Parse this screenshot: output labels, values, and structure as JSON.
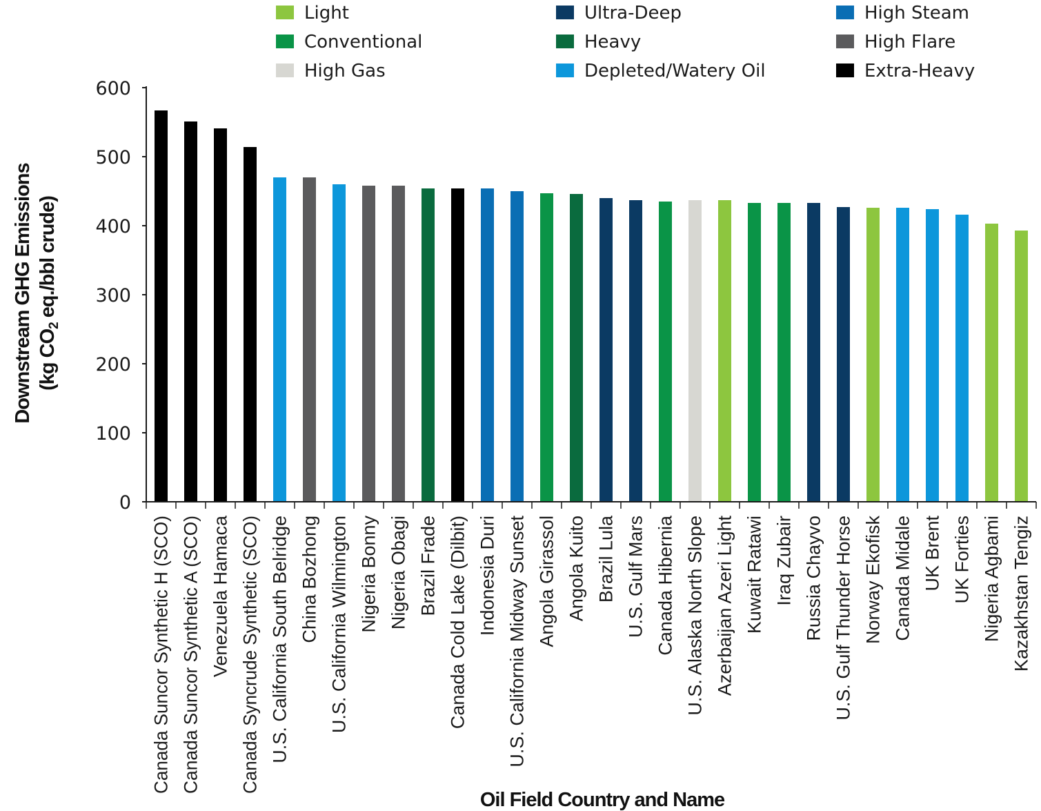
{
  "chart_data": {
    "type": "bar",
    "title": "",
    "xlabel": "Oil Field Country and Name",
    "ylabel": {
      "line1": "Downstream GHG Emissions",
      "line2_prefix": "(kg CO",
      "line2_sub": "2",
      "line2_suffix": " eq./bbl crude)"
    },
    "ylim": [
      0,
      600
    ],
    "yticks": [
      0,
      100,
      200,
      300,
      400,
      500,
      600
    ],
    "grid": false,
    "legend_position": "top",
    "legend": [
      {
        "name": "Light",
        "color": "#8dc63f"
      },
      {
        "name": "Ultra-Deep",
        "color": "#0b3a63"
      },
      {
        "name": "High Steam",
        "color": "#0a6eb4"
      },
      {
        "name": "Conventional",
        "color": "#0a9447"
      },
      {
        "name": "Heavy",
        "color": "#0a6b3e"
      },
      {
        "name": "High Flare",
        "color": "#5b5b5d"
      },
      {
        "name": "High Gas",
        "color": "#d7d7d2"
      },
      {
        "name": "Depleted/Watery Oil",
        "color": "#0d97db"
      },
      {
        "name": "Extra-Heavy",
        "color": "#000000"
      }
    ],
    "bars": [
      {
        "label": "Canada Suncor Synthetic H (SCO)",
        "value": 567,
        "category": "Extra-Heavy"
      },
      {
        "label": "Canada Suncor Synthetic A (SCO)",
        "value": 551,
        "category": "Extra-Heavy"
      },
      {
        "label": "Venezuela Hamaca",
        "value": 541,
        "category": "Extra-Heavy"
      },
      {
        "label": "Canada Syncrude Synthetic (SCO)",
        "value": 514,
        "category": "Extra-Heavy"
      },
      {
        "label": "U.S. California South Belridge",
        "value": 470,
        "category": "Depleted/Watery Oil"
      },
      {
        "label": "China Bozhong",
        "value": 470,
        "category": "High Flare"
      },
      {
        "label": "U.S. California Wilmington",
        "value": 460,
        "category": "Depleted/Watery Oil"
      },
      {
        "label": "Nigeria Bonny",
        "value": 458,
        "category": "High Flare"
      },
      {
        "label": "Nigeria Obagi",
        "value": 458,
        "category": "High Flare"
      },
      {
        "label": "Brazil Frade",
        "value": 454,
        "category": "Heavy"
      },
      {
        "label": "Canada Cold Lake (Dilbit)",
        "value": 454,
        "category": "Extra-Heavy"
      },
      {
        "label": "Indonesia Duri",
        "value": 454,
        "category": "High Steam"
      },
      {
        "label": "U.S. California Midway Sunset",
        "value": 450,
        "category": "High Steam"
      },
      {
        "label": "Angola Girassol",
        "value": 447,
        "category": "Conventional"
      },
      {
        "label": "Angola Kuito",
        "value": 446,
        "category": "Heavy"
      },
      {
        "label": "Brazil Lula",
        "value": 440,
        "category": "Ultra-Deep"
      },
      {
        "label": "U.S. Gulf Mars",
        "value": 437,
        "category": "Ultra-Deep"
      },
      {
        "label": "Canada Hibernia",
        "value": 435,
        "category": "Conventional"
      },
      {
        "label": "U.S. Alaska North Slope",
        "value": 437,
        "category": "High Gas"
      },
      {
        "label": "Azerbaijan Azeri Light",
        "value": 437,
        "category": "Light"
      },
      {
        "label": "Kuwait Ratawi",
        "value": 433,
        "category": "Conventional"
      },
      {
        "label": "Iraq Zubair",
        "value": 433,
        "category": "Conventional"
      },
      {
        "label": "Russia Chayvo",
        "value": 433,
        "category": "Ultra-Deep"
      },
      {
        "label": "U.S. Gulf Thunder Horse",
        "value": 427,
        "category": "Ultra-Deep"
      },
      {
        "label": "Norway Ekofisk",
        "value": 426,
        "category": "Light"
      },
      {
        "label": "Canada Midale",
        "value": 426,
        "category": "Depleted/Watery Oil"
      },
      {
        "label": "UK Brent",
        "value": 424,
        "category": "Depleted/Watery Oil"
      },
      {
        "label": "UK Forties",
        "value": 416,
        "category": "Depleted/Watery Oil"
      },
      {
        "label": "Nigeria Agbami",
        "value": 403,
        "category": "Light"
      },
      {
        "label": "Kazakhstan Tengiz",
        "value": 393,
        "category": "Light"
      }
    ]
  }
}
